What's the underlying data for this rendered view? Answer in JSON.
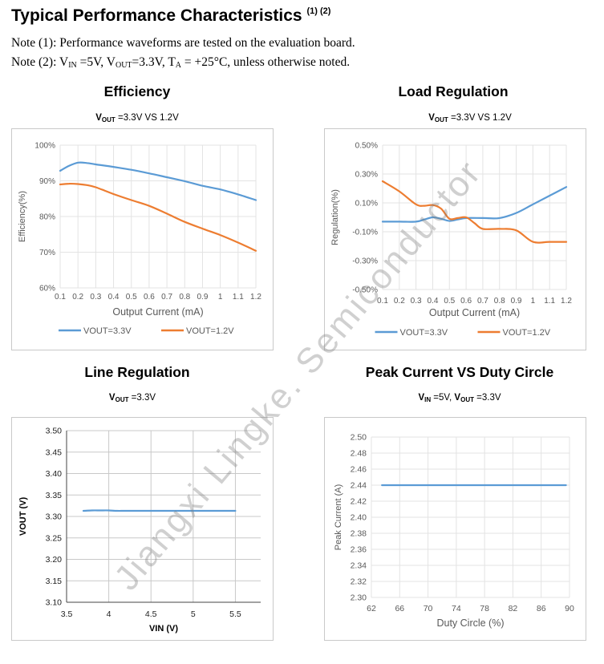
{
  "header": {
    "title": "Typical Performance Characteristics",
    "title_sup": "(1) (2)",
    "note1": "Note (1): Performance waveforms are tested on the evaluation board.",
    "note2": {
      "prefix": "Note (2): V",
      "vin_sub": "IN",
      "mid1": " =5V, V",
      "vout_sub": "OUT",
      "mid2": "=3.3V, T",
      "ta_sub": "A",
      "suffix": " = +25°C, unless otherwise noted."
    }
  },
  "watermark": "Jiangxi  Lingke. Semiconductor",
  "charts": {
    "efficiency": {
      "heading": "Efficiency",
      "sub_prefix": "V",
      "sub_sub": "OUT",
      "sub_suffix": " =3.3V VS 1.2V"
    },
    "load": {
      "heading": "Load Regulation",
      "sub_prefix": "V",
      "sub_sub": "OUT",
      "sub_suffix": " =3.3V VS 1.2V"
    },
    "line": {
      "heading": "Line Regulation",
      "sub_prefix": "V",
      "sub_sub": "OUT",
      "sub_suffix": " =3.3V"
    },
    "peak": {
      "heading": "Peak Current VS Duty Circle",
      "sub_a_prefix": "V",
      "sub_a_sub": "IN",
      "sub_a_suffix": " =5V, ",
      "sub_b_prefix": "V",
      "sub_b_sub": "OUT",
      "sub_b_suffix": " =3.3V"
    }
  },
  "chart_data": [
    {
      "id": "efficiency",
      "type": "line",
      "xlabel": "Output Current (mA)",
      "ylabel": "Efficiency(%)",
      "x_ticks": [
        "0.1",
        "0.2",
        "0.3",
        "0.4",
        "0.5",
        "0.6",
        "0.7",
        "0.8",
        "0.9",
        "1",
        "1.1",
        "1.2"
      ],
      "y_ticks": [
        "60%",
        "70%",
        "80%",
        "90%",
        "100%"
      ],
      "xlim": [
        0.1,
        1.2
      ],
      "ylim": [
        60,
        100
      ],
      "grid": true,
      "legend": "bottom",
      "series": [
        {
          "name": "VOUT=3.3V",
          "color": "#5b9bd5",
          "x": [
            0.1,
            0.15,
            0.2,
            0.25,
            0.3,
            0.4,
            0.5,
            0.6,
            0.7,
            0.8,
            0.9,
            1.0,
            1.1,
            1.2
          ],
          "y": [
            92.8,
            94.2,
            95.1,
            95.0,
            94.6,
            93.9,
            93.1,
            92.1,
            91.0,
            89.9,
            88.6,
            87.6,
            86.2,
            84.6
          ]
        },
        {
          "name": "VOUT=1.2V",
          "color": "#ed7d31",
          "x": [
            0.1,
            0.15,
            0.2,
            0.25,
            0.3,
            0.4,
            0.5,
            0.6,
            0.7,
            0.8,
            0.9,
            1.0,
            1.1,
            1.2
          ],
          "y": [
            89.0,
            89.2,
            89.1,
            88.8,
            88.2,
            86.3,
            84.6,
            83.0,
            80.8,
            78.5,
            76.6,
            74.8,
            72.7,
            70.4
          ]
        }
      ]
    },
    {
      "id": "load-regulation",
      "type": "line",
      "xlabel": "Output Current (mA)",
      "ylabel": "Regulation(%)",
      "x_ticks": [
        "0.1",
        "0.2",
        "0.3",
        "0.4",
        "0.5",
        "0.6",
        "0.7",
        "0.8",
        "0.9",
        "1",
        "1.1",
        "1.2"
      ],
      "y_ticks": [
        "-0.50%",
        "-0.30%",
        "-0.10%",
        "0.10%",
        "0.30%",
        "0.50%"
      ],
      "xlim": [
        0.1,
        1.2
      ],
      "ylim": [
        -0.5,
        0.5
      ],
      "grid": true,
      "legend": "bottom",
      "series": [
        {
          "name": "VOUT=3.3V",
          "color": "#5b9bd5",
          "x": [
            0.1,
            0.2,
            0.3,
            0.35,
            0.4,
            0.45,
            0.5,
            0.55,
            0.6,
            0.7,
            0.8,
            0.9,
            1.0,
            1.1,
            1.2
          ],
          "y": [
            -0.03,
            -0.03,
            -0.03,
            -0.015,
            0.0,
            -0.01,
            -0.025,
            -0.015,
            -0.005,
            -0.005,
            -0.005,
            0.03,
            0.09,
            0.15,
            0.21
          ]
        },
        {
          "name": "VOUT=1.2V",
          "color": "#ed7d31",
          "x": [
            0.1,
            0.2,
            0.3,
            0.35,
            0.4,
            0.45,
            0.5,
            0.55,
            0.6,
            0.65,
            0.7,
            0.8,
            0.9,
            1.0,
            1.1,
            1.2
          ],
          "y": [
            0.25,
            0.18,
            0.09,
            0.08,
            0.085,
            0.06,
            -0.01,
            -0.005,
            0.0,
            -0.04,
            -0.08,
            -0.08,
            -0.09,
            -0.17,
            -0.17,
            -0.17
          ]
        }
      ]
    },
    {
      "id": "line-regulation",
      "type": "line",
      "xlabel": "VIN (V)",
      "ylabel": "VOUT (V)",
      "x_ticks": [
        "3.5",
        "4",
        "4.5",
        "5",
        "5.5"
      ],
      "y_ticks": [
        "3.10",
        "3.15",
        "3.20",
        "3.25",
        "3.30",
        "3.35",
        "3.40",
        "3.45",
        "3.50"
      ],
      "xlim": [
        3.5,
        5.8
      ],
      "ylim": [
        3.1,
        3.5
      ],
      "grid": true,
      "legend": "none",
      "series": [
        {
          "color": "#5b9bd5",
          "x": [
            3.7,
            3.8,
            3.9,
            4.0,
            4.1,
            4.2,
            4.5,
            5.0,
            5.5
          ],
          "y": [
            3.313,
            3.314,
            3.314,
            3.314,
            3.313,
            3.313,
            3.313,
            3.313,
            3.313
          ]
        }
      ]
    },
    {
      "id": "peak-current",
      "type": "line",
      "xlabel": "Duty Circle (%)",
      "ylabel": "Peak Current (A)",
      "x_ticks": [
        "62",
        "66",
        "70",
        "74",
        "78",
        "82",
        "86",
        "90"
      ],
      "y_ticks": [
        "2.30",
        "2.32",
        "2.34",
        "2.36",
        "2.38",
        "2.40",
        "2.42",
        "2.44",
        "2.46",
        "2.48",
        "2.50"
      ],
      "xlim": [
        62,
        90
      ],
      "ylim": [
        2.3,
        2.5
      ],
      "grid": true,
      "legend": "none",
      "series": [
        {
          "color": "#5b9bd5",
          "x": [
            63.5,
            89.5
          ],
          "y": [
            2.44,
            2.44
          ]
        }
      ]
    }
  ]
}
